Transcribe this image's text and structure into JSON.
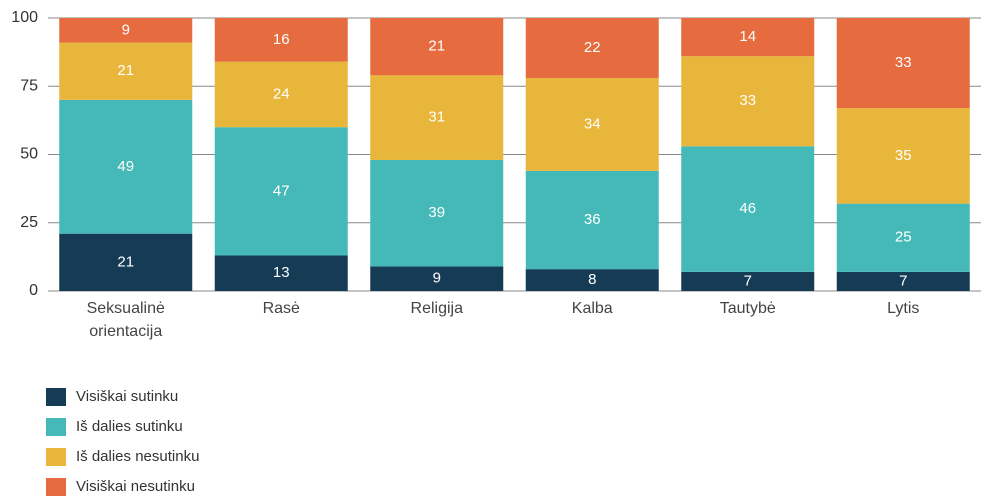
{
  "chart_data": {
    "type": "stacked_bar",
    "categories": [
      "Seksualinė orientacija",
      "Rasė",
      "Religija",
      "Kalba",
      "Tautybė",
      "Lytis"
    ],
    "series": [
      {
        "name": "Visiškai sutinku",
        "color": "#163b55",
        "values": [
          21,
          13,
          9,
          8,
          7,
          7
        ]
      },
      {
        "name": "Iš dalies sutinku",
        "color": "#45b9b8",
        "values": [
          49,
          47,
          39,
          36,
          46,
          25
        ]
      },
      {
        "name": "Iš dalies nesutinku",
        "color": "#e8b63a",
        "values": [
          21,
          24,
          31,
          34,
          33,
          35
        ]
      },
      {
        "name": "Visiškai nesutinku",
        "color": "#e66b3e",
        "values": [
          9,
          16,
          21,
          22,
          14,
          33
        ]
      }
    ],
    "ylim": [
      0,
      100
    ],
    "yticks": [
      0,
      25,
      50,
      75,
      100
    ],
    "grid": true,
    "legend": "bottom-left"
  }
}
